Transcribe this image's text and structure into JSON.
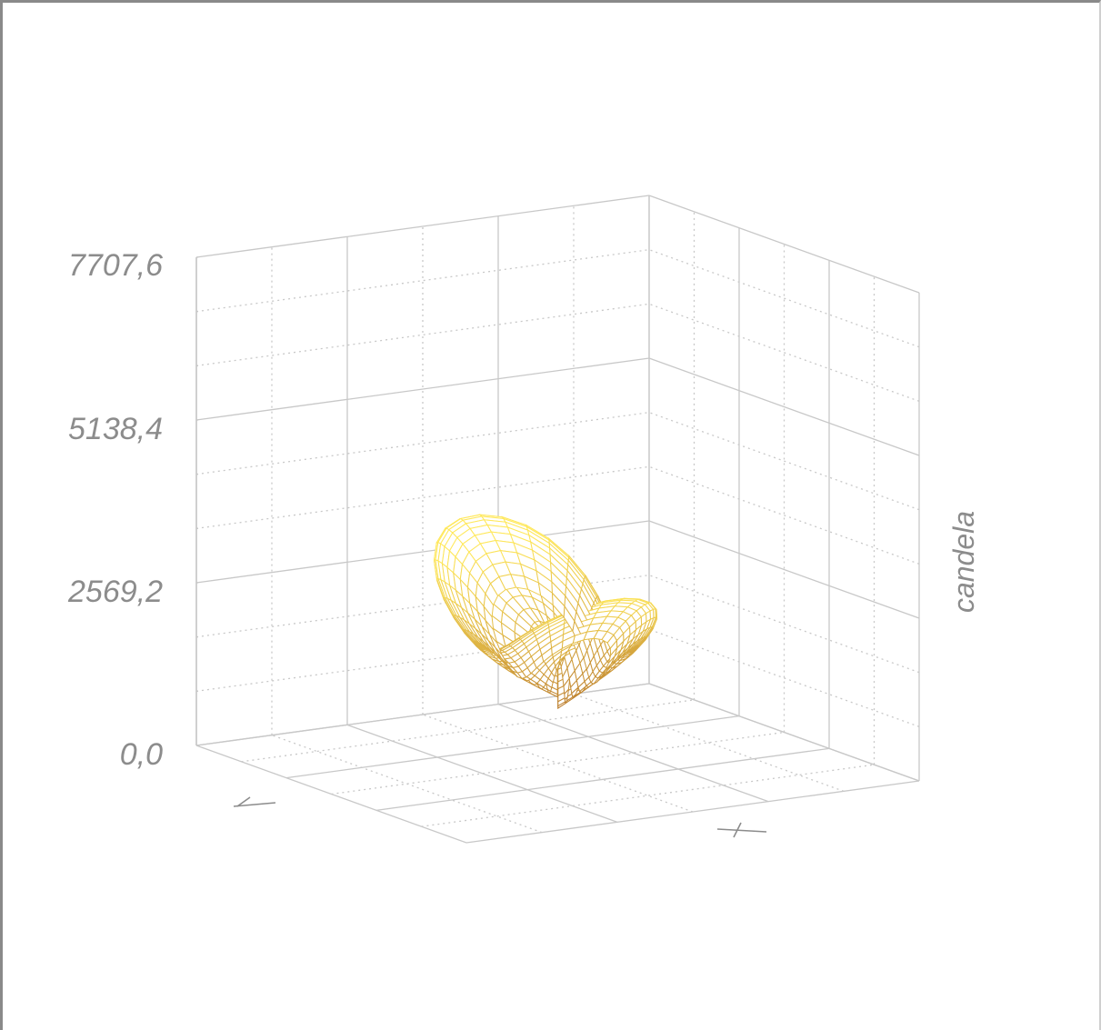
{
  "chart_data": {
    "type": "surface3d",
    "title": "",
    "zlabel": "candela",
    "xlabel": "",
    "ylabel": "",
    "zlim": [
      0,
      7707.6
    ],
    "z_ticks": [
      "0,0",
      "2569,2",
      "5138,4",
      "7707,6"
    ],
    "grid": true,
    "peak_value": 4300,
    "surface_colors": {
      "top": "#ffe85a",
      "bottom": "#a0521c"
    },
    "grid_color": "#c8c8c8",
    "frame_color": "#8a8a8a",
    "label_color": "#8c8c8c"
  }
}
